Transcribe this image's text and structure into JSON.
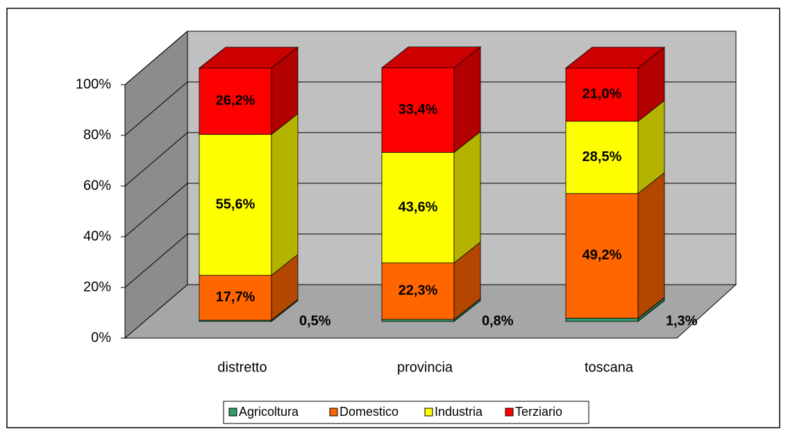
{
  "chart_data": {
    "type": "bar3d_stacked",
    "categories": [
      "distretto",
      "provincia",
      "toscana"
    ],
    "series": [
      {
        "name": "Agricoltura",
        "color": "#339966",
        "values": [
          0.5,
          0.8,
          1.3
        ],
        "value_labels": [
          "0,5%",
          "0,8%",
          "1,3%"
        ]
      },
      {
        "name": "Domestico",
        "color": "#ff6600",
        "values": [
          17.7,
          22.3,
          49.2
        ],
        "value_labels": [
          "17,7%",
          "22,3%",
          "49,2%"
        ]
      },
      {
        "name": "Industria",
        "color": "#ffff00",
        "values": [
          55.6,
          43.6,
          28.5
        ],
        "value_labels": [
          "55,6%",
          "43,6%",
          "28,5%"
        ]
      },
      {
        "name": "Terziario",
        "color": "#ff0000",
        "values": [
          26.2,
          33.4,
          21.0
        ],
        "value_labels": [
          "26,2%",
          "33,4%",
          "21,0%"
        ]
      }
    ],
    "ylim": [
      0,
      100
    ],
    "yticks": [
      {
        "value": 0,
        "label": "0%"
      },
      {
        "value": 20,
        "label": "20%"
      },
      {
        "value": 40,
        "label": "40%"
      },
      {
        "value": 60,
        "label": "60%"
      },
      {
        "value": 80,
        "label": "80%"
      },
      {
        "value": 100,
        "label": "100%"
      }
    ],
    "grid": true,
    "legend": "bottom"
  }
}
